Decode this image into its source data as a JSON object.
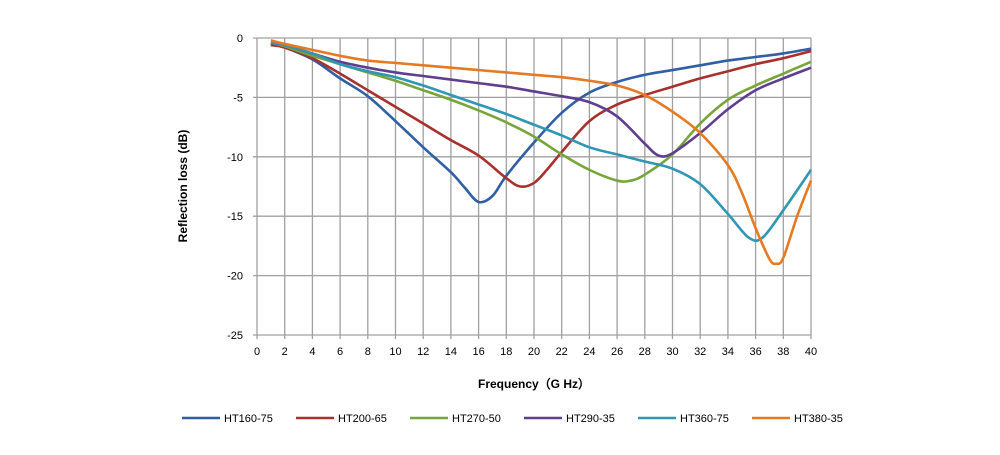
{
  "chart_data": {
    "type": "line",
    "title": "",
    "xlabel": "Frequency（G Hz）",
    "ylabel": "Reflection loss (dB)",
    "xlim": [
      0,
      40
    ],
    "ylim": [
      -25,
      0
    ],
    "xticks": [
      0,
      2,
      4,
      6,
      8,
      10,
      12,
      14,
      16,
      18,
      20,
      22,
      24,
      26,
      28,
      30,
      32,
      34,
      36,
      38,
      40
    ],
    "yticks": [
      0,
      -5,
      -10,
      -15,
      -20,
      -25
    ],
    "grid": true,
    "legend_position": "bottom",
    "series": [
      {
        "name": "HT160-75",
        "color": "#2f5fa5",
        "x": [
          1,
          2,
          4,
          6,
          8,
          10,
          12,
          14,
          15,
          16,
          17,
          18,
          20,
          22,
          24,
          26,
          28,
          30,
          32,
          34,
          36,
          38,
          40
        ],
        "y": [
          -0.5,
          -0.8,
          -1.8,
          -3.4,
          -4.9,
          -7,
          -9.2,
          -11.3,
          -12.6,
          -13.8,
          -13.3,
          -11.6,
          -8.8,
          -6.3,
          -4.6,
          -3.7,
          -3.1,
          -2.7,
          -2.3,
          -1.9,
          -1.6,
          -1.3,
          -0.9
        ]
      },
      {
        "name": "HT200-65",
        "color": "#a8302d",
        "x": [
          1,
          2,
          4,
          6,
          8,
          10,
          12,
          14,
          16,
          18,
          19,
          20,
          21,
          22,
          24,
          26,
          28,
          30,
          32,
          34,
          36,
          38,
          40
        ],
        "y": [
          -0.6,
          -0.8,
          -1.7,
          -3,
          -4.4,
          -5.8,
          -7.2,
          -8.6,
          -9.9,
          -11.8,
          -12.5,
          -12.2,
          -11,
          -9.6,
          -7,
          -5.6,
          -4.8,
          -4.1,
          -3.4,
          -2.8,
          -2.2,
          -1.7,
          -1.1
        ]
      },
      {
        "name": "HT270-50",
        "color": "#77a53a",
        "x": [
          1,
          2,
          4,
          6,
          8,
          10,
          12,
          14,
          16,
          18,
          20,
          22,
          24,
          26,
          27,
          28,
          30,
          32,
          34,
          36,
          38,
          40
        ],
        "y": [
          -0.4,
          -0.7,
          -1.5,
          -2.2,
          -2.9,
          -3.6,
          -4.4,
          -5.2,
          -6.1,
          -7.1,
          -8.3,
          -9.8,
          -11.1,
          -12,
          -12,
          -11.5,
          -9.8,
          -7.2,
          -5.2,
          -4,
          -3,
          -2
        ]
      },
      {
        "name": "HT290-35",
        "color": "#5f3e8f",
        "x": [
          1,
          2,
          4,
          6,
          8,
          10,
          12,
          14,
          16,
          18,
          20,
          22,
          24,
          26,
          28,
          29,
          30,
          32,
          34,
          36,
          38,
          40
        ],
        "y": [
          -0.4,
          -0.6,
          -1.3,
          -2,
          -2.5,
          -2.9,
          -3.2,
          -3.5,
          -3.8,
          -4.1,
          -4.5,
          -4.9,
          -5.4,
          -6.6,
          -8.9,
          -9.9,
          -9.7,
          -8,
          -6,
          -4.4,
          -3.4,
          -2.5
        ]
      },
      {
        "name": "HT360-75",
        "color": "#2f96b4",
        "x": [
          1,
          2,
          4,
          6,
          8,
          10,
          12,
          14,
          16,
          18,
          20,
          22,
          24,
          26,
          28,
          30,
          32,
          34,
          35.5,
          36.5,
          38,
          40
        ],
        "y": [
          -0.4,
          -0.6,
          -1.3,
          -2.2,
          -2.8,
          -3.3,
          -4,
          -4.8,
          -5.6,
          -6.4,
          -7.3,
          -8.2,
          -9.2,
          -9.8,
          -10.4,
          -11,
          -12.3,
          -14.8,
          -16.8,
          -16.8,
          -14.5,
          -11.1
        ]
      },
      {
        "name": "HT380-35",
        "color": "#e67a22",
        "x": [
          1,
          2,
          4,
          6,
          8,
          10,
          12,
          14,
          16,
          18,
          20,
          22,
          24,
          26,
          28,
          30,
          32,
          34,
          35,
          36,
          37,
          37.5,
          38,
          39,
          40
        ],
        "y": [
          -0.2,
          -0.5,
          -1,
          -1.5,
          -1.9,
          -2.1,
          -2.3,
          -2.5,
          -2.7,
          -2.9,
          -3.1,
          -3.3,
          -3.6,
          -4,
          -4.8,
          -6.2,
          -8,
          -10.7,
          -13,
          -16,
          -18.6,
          -19,
          -18.5,
          -15,
          -12
        ]
      }
    ]
  }
}
